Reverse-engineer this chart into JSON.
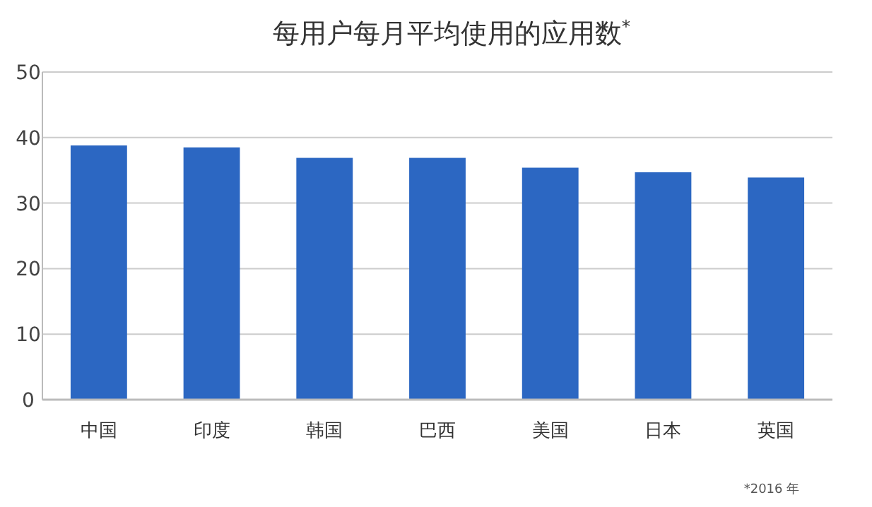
{
  "chart_data": {
    "type": "bar",
    "title": "每用户每月平均使用的应用数$^{*}$",
    "categories": [
      "中国",
      "印度",
      "韩国",
      "巴西",
      "美国",
      "日本",
      "英国"
    ],
    "values": [
      38.8,
      38.5,
      36.9,
      36.9,
      35.4,
      34.7,
      33.9
    ],
    "color": "#2c67c2",
    "ylim": [
      0,
      50
    ],
    "yticks": [
      0,
      10,
      20,
      30,
      40,
      50
    ],
    "grid": "y",
    "annotations": [
      "*2016 年"
    ]
  }
}
